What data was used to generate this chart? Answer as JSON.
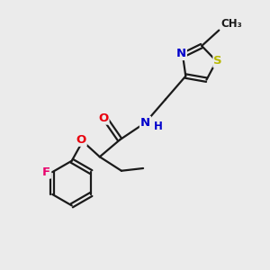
{
  "background_color": "#ebebeb",
  "bond_color": "#1a1a1a",
  "bond_width": 1.6,
  "atom_colors": {
    "O": "#e8000d",
    "N": "#0000cc",
    "S": "#b8b800",
    "F": "#e8006b",
    "C": "#1a1a1a"
  },
  "font_size_atom": 9.5,
  "font_size_small": 8.5
}
